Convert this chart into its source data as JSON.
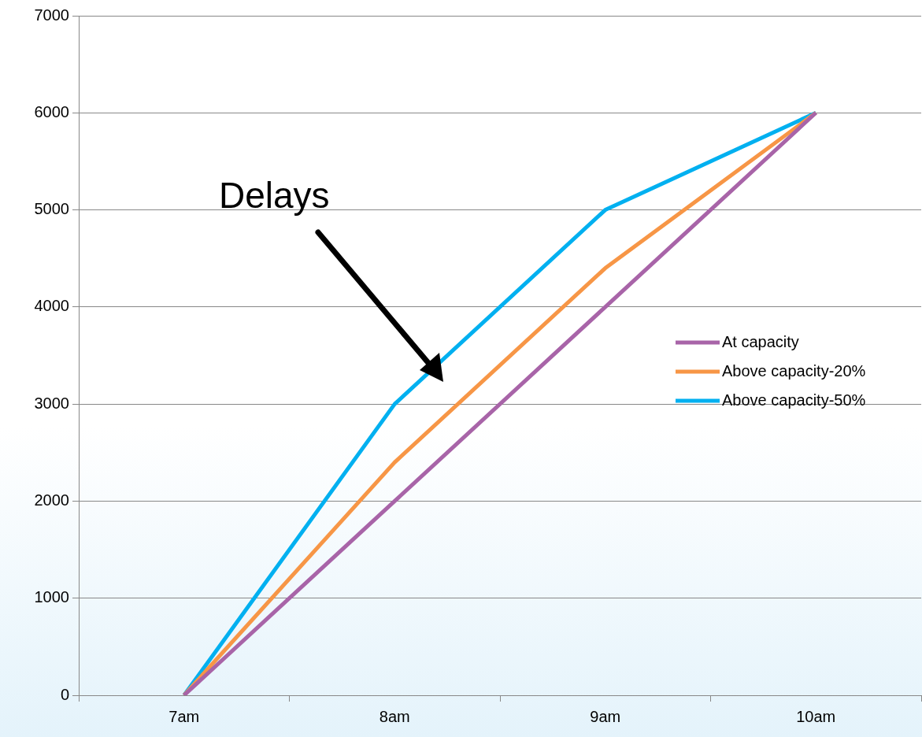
{
  "chart_data": {
    "type": "line",
    "categories": [
      "7am",
      "8am",
      "9am",
      "10am"
    ],
    "series": [
      {
        "name": "At capacity",
        "color": "#a864a8",
        "values": [
          0,
          2000,
          4000,
          6000
        ]
      },
      {
        "name": "Above capacity-20%",
        "color": "#f79646",
        "values": [
          0,
          2400,
          4400,
          6000
        ]
      },
      {
        "name": "Above capacity-50%",
        "color": "#00b0f0",
        "values": [
          0,
          3000,
          5000,
          6000
        ]
      }
    ],
    "ylim": [
      0,
      7000
    ],
    "yticks": [
      0,
      1000,
      2000,
      3000,
      4000,
      5000,
      6000,
      7000
    ],
    "grid": "y",
    "legend": "right",
    "marker": "none",
    "line_style": "solid",
    "annotations": [
      "Delays"
    ]
  }
}
